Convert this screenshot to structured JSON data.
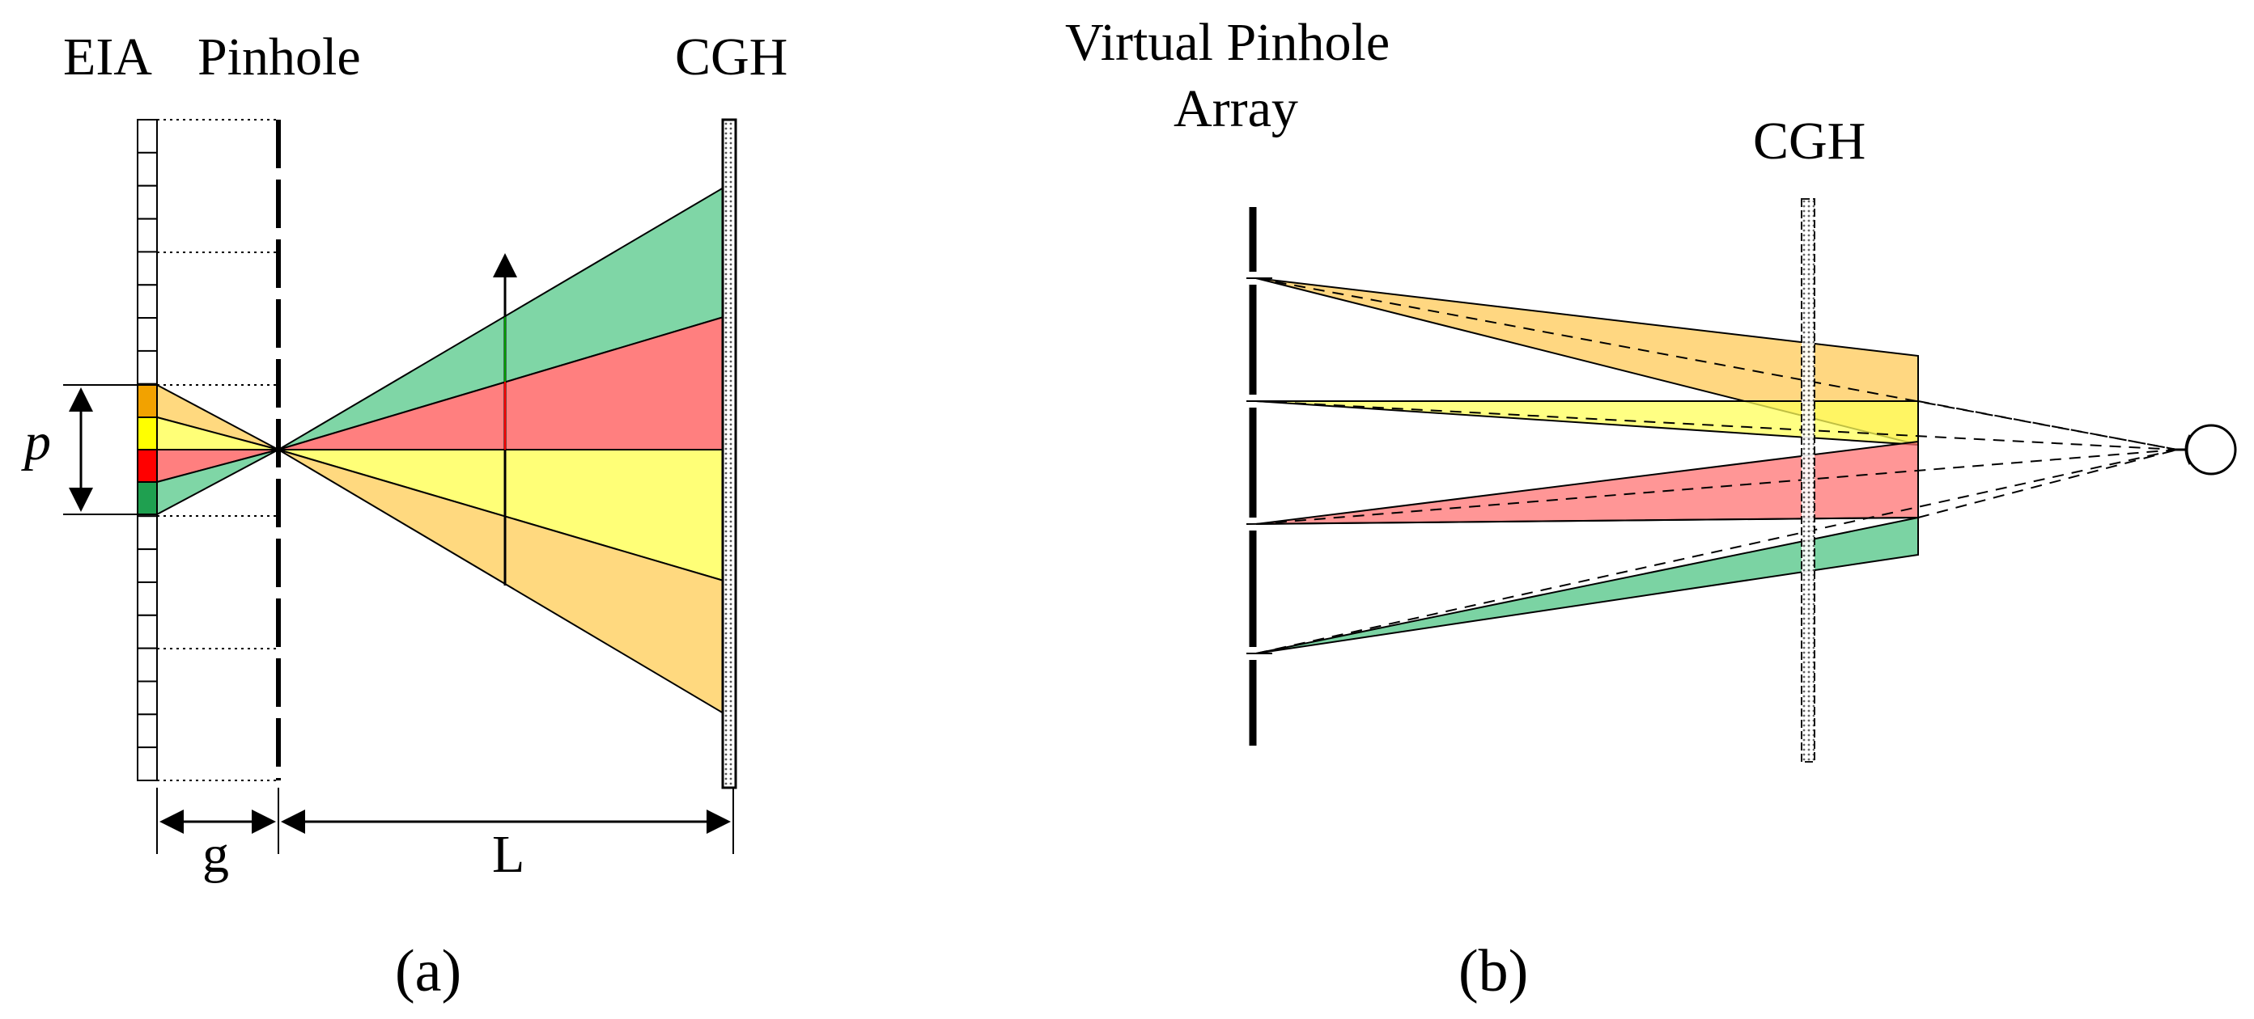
{
  "panel_a": {
    "labels": {
      "eia": "EIA",
      "pinhole": "Pinhole",
      "cgh": "CGH",
      "pitch": "p",
      "gap": "g",
      "distance": "L"
    },
    "caption": "(a)"
  },
  "panel_b": {
    "labels": {
      "array_line1": "Virtual  Pinhole",
      "array_line2": "Array",
      "cgh": "CGH"
    },
    "caption": "(b)"
  },
  "colors": {
    "orange": "#FFD97F",
    "orange_dark": "#F2A200",
    "yellow": "#FFFF77",
    "yellow_solid": "#FFFF00",
    "red": "#FF7F7F",
    "red_solid": "#FF0000",
    "green": "#7FD6A6",
    "green_solid": "#1FA050",
    "vertical_red_line": "#FF0000",
    "vertical_green_line": "#00A000"
  }
}
